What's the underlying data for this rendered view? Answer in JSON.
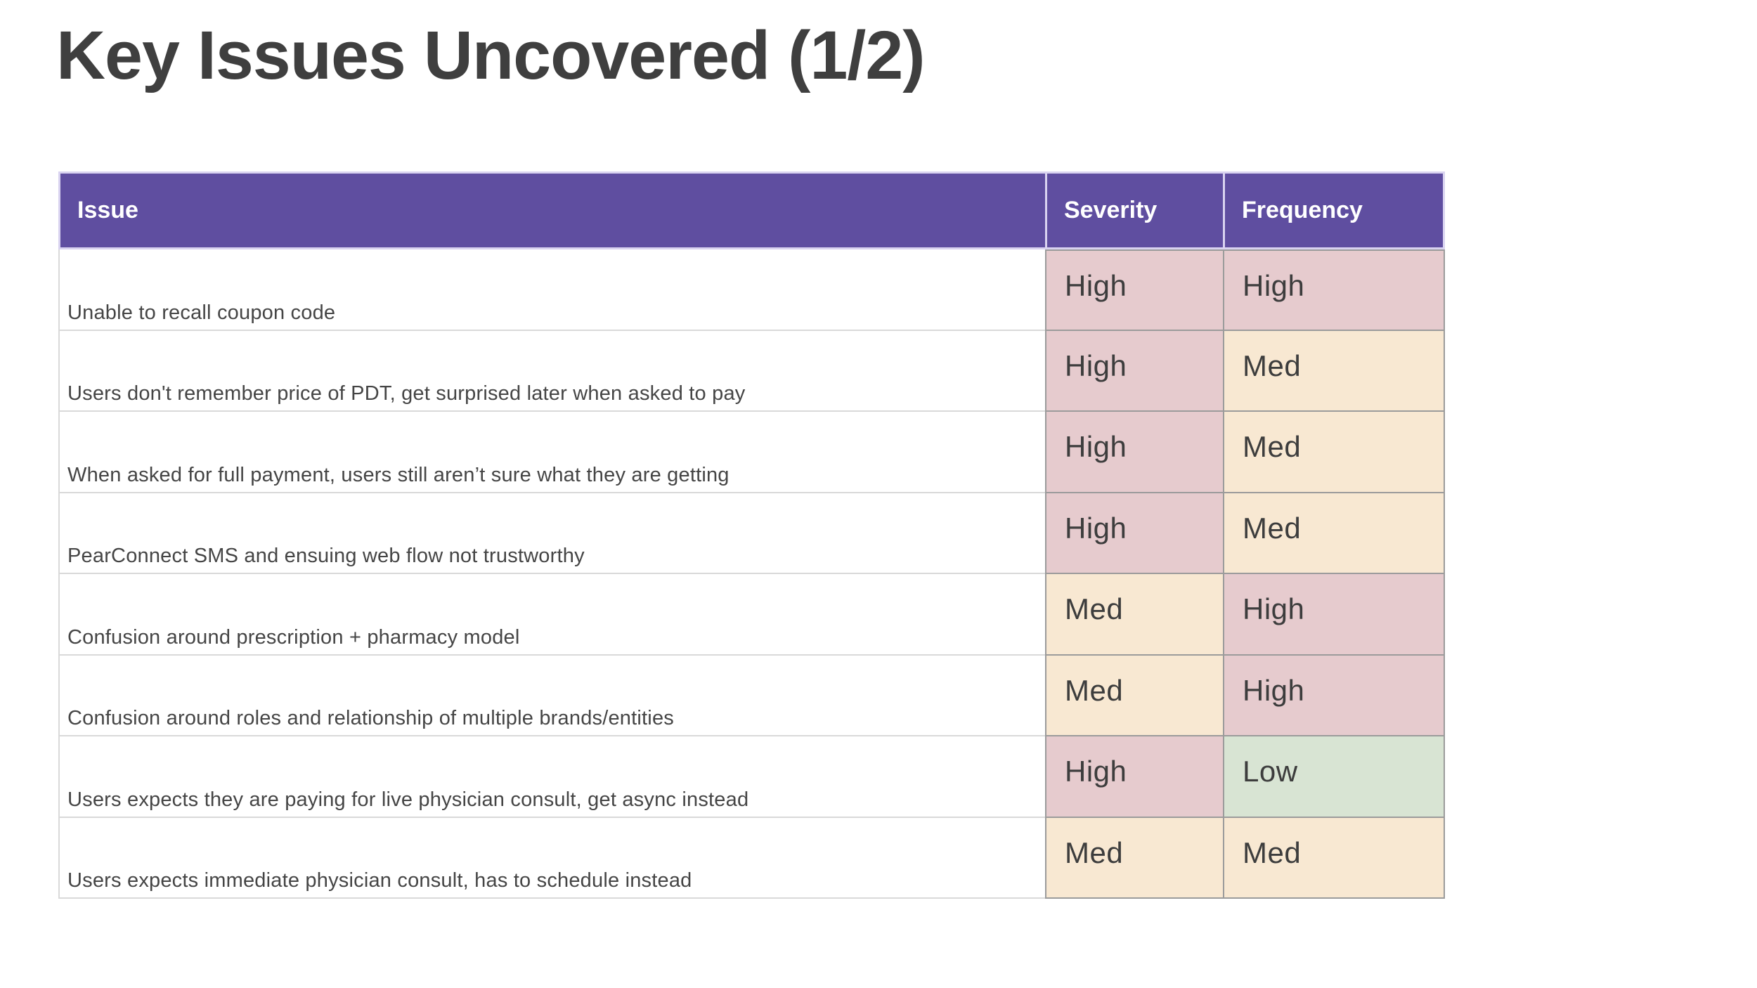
{
  "slide": {
    "title": "Key Issues Uncovered (1/2)"
  },
  "table": {
    "headers": {
      "issue": "Issue",
      "severity": "Severity",
      "frequency": "Frequency"
    },
    "rows": [
      {
        "issue": "Unable to recall coupon code",
        "severity": "High",
        "frequency": "High"
      },
      {
        "issue": "Users don't remember price of PDT, get surprised later when asked to pay",
        "severity": "High",
        "frequency": "Med"
      },
      {
        "issue": "When asked for full payment, users still aren’t sure what they are getting",
        "severity": "High",
        "frequency": "Med"
      },
      {
        "issue": "PearConnect SMS and ensuing web flow not trustworthy",
        "severity": "High",
        "frequency": "Med"
      },
      {
        "issue": "Confusion around prescription + pharmacy model",
        "severity": "Med",
        "frequency": "High"
      },
      {
        "issue": "Confusion around roles and relationship of multiple brands/entities",
        "severity": "Med",
        "frequency": "High"
      },
      {
        "issue": "Users expects they are paying for live physician consult, get async instead",
        "severity": "High",
        "frequency": "Low"
      },
      {
        "issue": "Users expects immediate physician consult, has to schedule instead",
        "severity": "Med",
        "frequency": "Med"
      }
    ],
    "level_colors": {
      "High": "#e6cbce",
      "Med": "#f8e8d2",
      "Low": "#d8e4d3"
    },
    "header_bg": "#5f4ea0",
    "header_text_color": "#ffffff"
  }
}
